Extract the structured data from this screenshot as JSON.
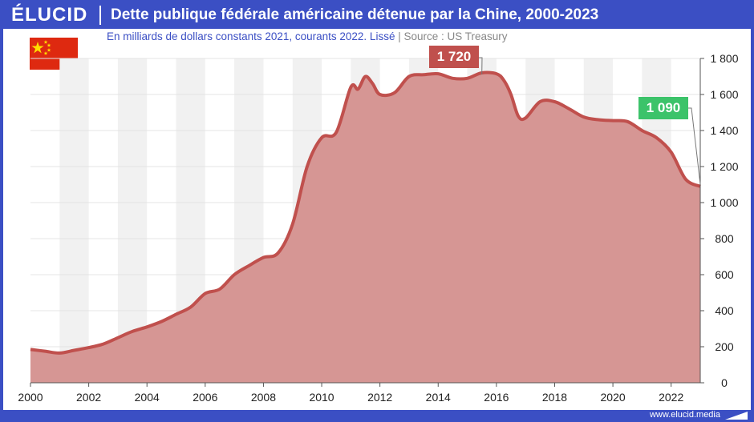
{
  "header": {
    "logo": "ÉLUCID",
    "title": "Dette publique fédérale américaine détenue par la Chine, 2000-2023"
  },
  "subtitle": {
    "text": "En milliards de dollars constants 2021, courants 2022. Lissé",
    "separator": "|",
    "source": "Source : US Treasury"
  },
  "flag_icon": "china-flag-icon",
  "footer": {
    "url": "www.elucid.media"
  },
  "colors": {
    "brand": "#3b4fc4",
    "area_fill": "#d69694",
    "line": "#c0504d",
    "callout_max": "#c0504d",
    "callout_last": "#3cc36a"
  },
  "chart_data": {
    "type": "area",
    "title": "Dette publique fédérale américaine détenue par la Chine, 2000-2023",
    "xlim": [
      2000,
      2023
    ],
    "ylim": [
      0,
      1800
    ],
    "x_ticks": [
      "2000",
      "2002",
      "2004",
      "2006",
      "2008",
      "2010",
      "2012",
      "2014",
      "2016",
      "2018",
      "2020",
      "2022"
    ],
    "y_ticks": [
      "0",
      "200",
      "400",
      "600",
      "800",
      "1 000",
      "1 200",
      "1 400",
      "1 600",
      "1 800"
    ],
    "y_axis_position": "right",
    "grid": "alternating vertical bands per year",
    "series": [
      {
        "x": [
          2000,
          2000.5,
          2001,
          2001.5,
          2002,
          2002.5,
          2003,
          2003.5,
          2004,
          2004.5,
          2005,
          2005.5,
          2006,
          2006.5,
          2007,
          2007.5,
          2008,
          2008.5,
          2009,
          2009.5,
          2010,
          2010.5,
          2011,
          2011.25,
          2011.5,
          2011.75,
          2012,
          2012.5,
          2013,
          2013.5,
          2014,
          2014.5,
          2015,
          2015.5,
          2016,
          2016.25,
          2016.5,
          2016.75,
          2017,
          2017.5,
          2018,
          2018.5,
          2019,
          2019.5,
          2020,
          2020.5,
          2021,
          2021.5,
          2022,
          2022.5,
          2023
        ],
        "y": [
          185,
          175,
          165,
          180,
          195,
          215,
          250,
          285,
          310,
          340,
          380,
          420,
          495,
          520,
          600,
          650,
          695,
          720,
          880,
          1200,
          1360,
          1390,
          1640,
          1630,
          1700,
          1660,
          1600,
          1610,
          1700,
          1710,
          1715,
          1690,
          1690,
          1720,
          1715,
          1680,
          1600,
          1480,
          1470,
          1560,
          1560,
          1520,
          1475,
          1460,
          1455,
          1450,
          1400,
          1360,
          1280,
          1130,
          1090
        ]
      }
    ],
    "annotations": [
      {
        "label": "1 720",
        "x": 2015.5,
        "y": 1720
      },
      {
        "label": "1 090",
        "x": 2023,
        "y": 1090
      }
    ]
  }
}
